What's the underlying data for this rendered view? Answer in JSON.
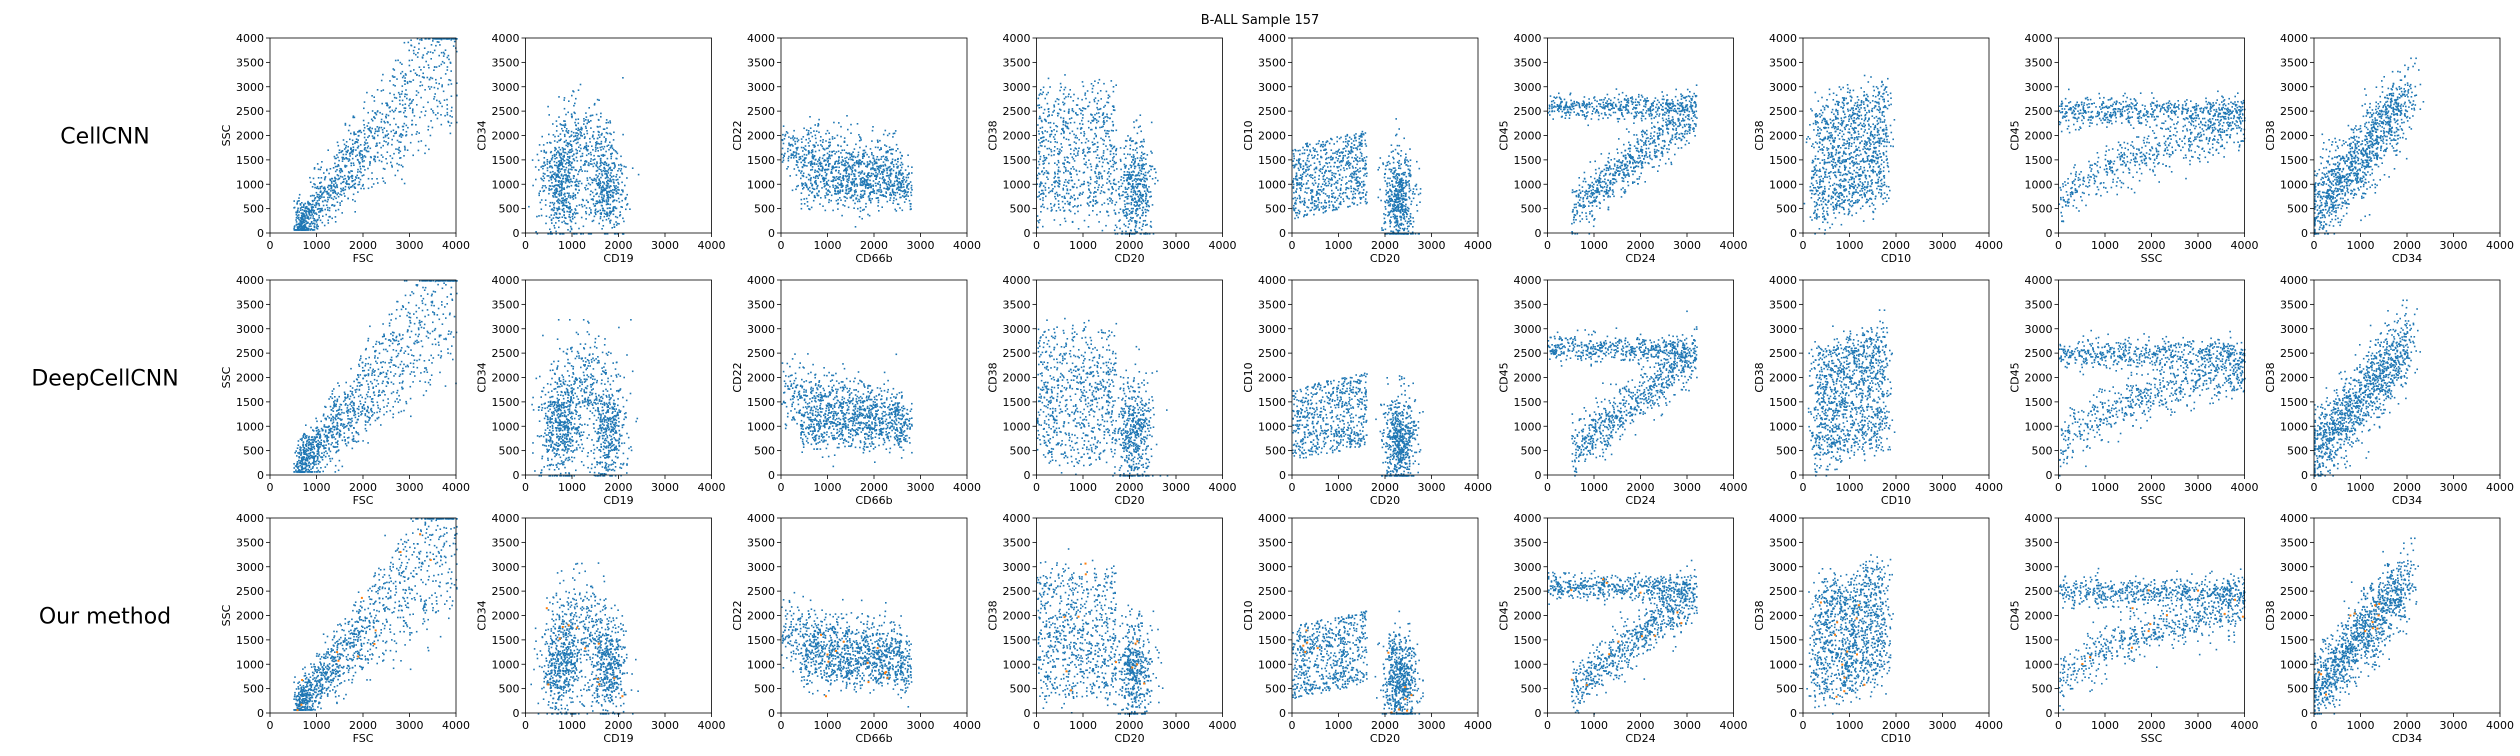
{
  "figure": {
    "title": "B-ALL Sample 157",
    "row_labels": [
      "CellCNN",
      "DeepCellCNN",
      "Our method"
    ],
    "point_color": "#1f77b4",
    "highlight_color": "#ff7f0e"
  },
  "chart_data": {
    "type": "scatter",
    "title": "B-ALL Sample 157",
    "xlim": [
      0,
      4000
    ],
    "ylim": [
      0,
      4000
    ],
    "ticks": [
      "0",
      "500",
      "1000",
      "1500",
      "2000",
      "2500",
      "3000",
      "3500",
      "4000"
    ],
    "xticks": [
      "0",
      "1000",
      "2000",
      "3000",
      "4000"
    ],
    "grid": false,
    "rows": [
      "CellCNN",
      "DeepCellCNN",
      "Our method"
    ],
    "panels": [
      {
        "xlabel": "FSC",
        "ylabel": "SSC"
      },
      {
        "xlabel": "CD19",
        "ylabel": "CD34"
      },
      {
        "xlabel": "CD66b",
        "ylabel": "CD22"
      },
      {
        "xlabel": "CD20",
        "ylabel": "CD38"
      },
      {
        "xlabel": "CD20",
        "ylabel": "CD10"
      },
      {
        "xlabel": "CD24",
        "ylabel": "CD45"
      },
      {
        "xlabel": "CD10",
        "ylabel": "CD38"
      },
      {
        "xlabel": "SSC",
        "ylabel": "CD45"
      },
      {
        "xlabel": "CD34",
        "ylabel": "CD38"
      }
    ]
  }
}
